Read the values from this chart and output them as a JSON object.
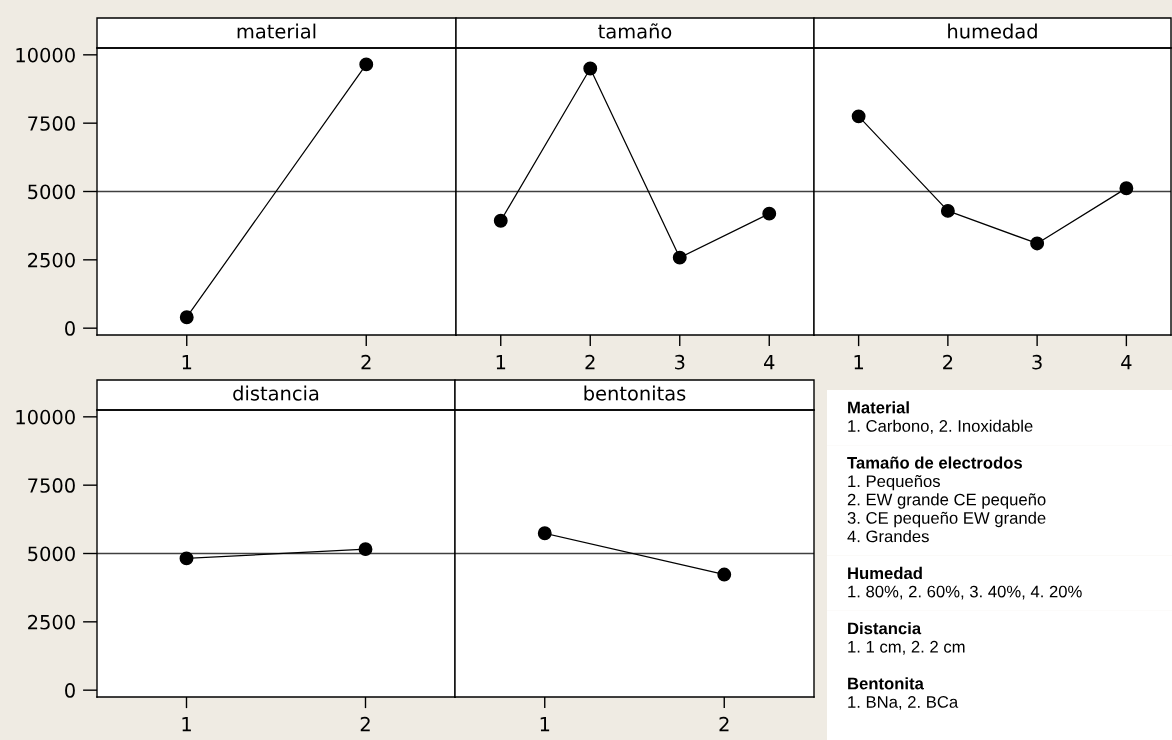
{
  "chart_data": [
    {
      "type": "line",
      "title": "material",
      "x": [
        1,
        2
      ],
      "values": [
        400,
        9650
      ],
      "color": "#000000",
      "marker": "circle",
      "xlim": [
        0.5,
        2.5
      ],
      "xticks": [
        1,
        2
      ],
      "ylim": [
        -250,
        10250
      ],
      "yticks": [
        0,
        2500,
        5000,
        7500,
        10000
      ],
      "ref_lines": [
        {
          "axis": "y",
          "value": 5000,
          "color": "#404040"
        }
      ],
      "grid": false
    },
    {
      "type": "line",
      "title": "tamaño",
      "x": [
        1,
        2,
        3,
        4
      ],
      "values": [
        3930,
        9500,
        2580,
        4190
      ],
      "color": "#000000",
      "marker": "circle",
      "xlim": [
        0.5,
        4.5
      ],
      "xticks": [
        1,
        2,
        3,
        4
      ],
      "ylim": [
        -250,
        10250
      ],
      "yticks": [
        0,
        2500,
        5000,
        7500,
        10000
      ],
      "tick_labels": "x",
      "ref_lines": [
        {
          "axis": "y",
          "value": 5000,
          "color": "#404040"
        }
      ],
      "grid": false
    },
    {
      "type": "line",
      "title": "humedad",
      "x": [
        1,
        2,
        3,
        4
      ],
      "values": [
        7750,
        4290,
        3100,
        5120
      ],
      "color": "#000000",
      "marker": "circle",
      "xlim": [
        0.5,
        4.5
      ],
      "xticks": [
        1,
        2,
        3,
        4
      ],
      "ylim": [
        -250,
        10250
      ],
      "yticks": [
        0,
        2500,
        5000,
        7500,
        10000
      ],
      "tick_labels": "x",
      "ref_lines": [
        {
          "axis": "y",
          "value": 5000,
          "color": "#404040"
        }
      ],
      "grid": false
    },
    {
      "type": "line",
      "title": "distancia",
      "x": [
        1,
        2
      ],
      "values": [
        4820,
        5160
      ],
      "color": "#000000",
      "marker": "circle",
      "xlim": [
        0.5,
        2.5
      ],
      "xticks": [
        1,
        2
      ],
      "ylim": [
        -250,
        10250
      ],
      "yticks": [
        0,
        2500,
        5000,
        7500,
        10000
      ],
      "ref_lines": [
        {
          "axis": "y",
          "value": 5000,
          "color": "#404040"
        }
      ],
      "grid": false
    },
    {
      "type": "line",
      "title": "bentonitas",
      "x": [
        1,
        2
      ],
      "values": [
        5740,
        4230
      ],
      "color": "#000000",
      "marker": "circle",
      "xlim": [
        0.5,
        2.5
      ],
      "xticks": [
        1,
        2
      ],
      "ylim": [
        -250,
        10250
      ],
      "yticks": [
        0,
        2500,
        5000,
        7500,
        10000
      ],
      "tick_labels": "x",
      "ref_lines": [
        {
          "axis": "y",
          "value": 5000,
          "color": "#404040"
        }
      ],
      "grid": false
    },
    {
      "type": "other",
      "title": "Material",
      "annotations": [
        "1. Carbono, 2. Inoxidable"
      ]
    },
    {
      "type": "other",
      "title": "Tamaño de electrodos",
      "annotations": [
        "1. Pequeños",
        "2. EW grande CE pequeño",
        "3. CE pequeño EW grande",
        "4. Grandes"
      ]
    },
    {
      "type": "other",
      "title": "Humedad",
      "annotations": [
        "1. 80%, 2. 60%, 3. 40%, 4. 20%"
      ]
    },
    {
      "type": "other",
      "title": "Distancia",
      "annotations": [
        "1. 1 cm, 2. 2 cm"
      ]
    },
    {
      "type": "other",
      "title": "Bentonita",
      "annotations": [
        "1. BNa, 2. BCa"
      ]
    }
  ]
}
